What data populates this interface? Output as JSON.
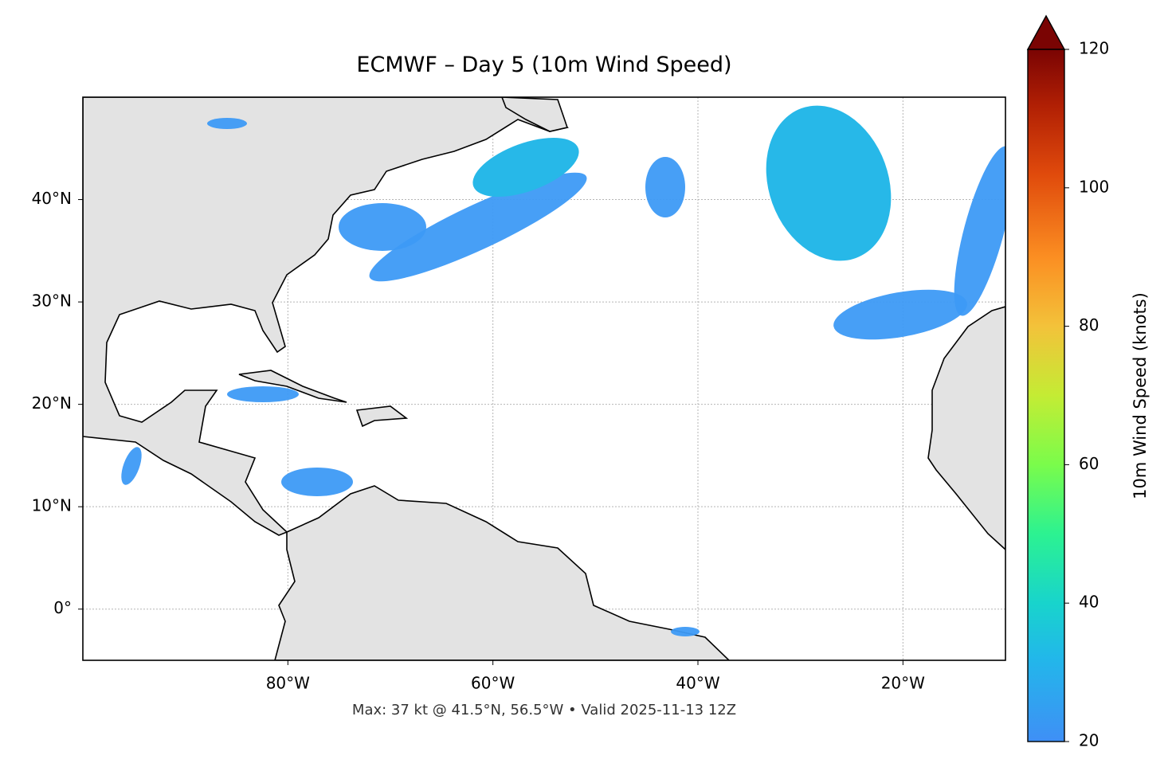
{
  "chart_data": {
    "type": "map",
    "title": "ECMWF – Day 5 (10m Wind Speed)",
    "annotation": "Max: 37 kt @ 41.5°N, 56.5°W • Valid 2025-11-13 12Z",
    "xlim": [
      -100,
      -10
    ],
    "ylim": [
      -5,
      50
    ],
    "xticks": [
      {
        "value": -80,
        "label": "80°W"
      },
      {
        "value": -60,
        "label": "60°W"
      },
      {
        "value": -40,
        "label": "40°W"
      },
      {
        "value": -20,
        "label": "20°W"
      }
    ],
    "yticks": [
      {
        "value": 0,
        "label": "0°"
      },
      {
        "value": 10,
        "label": "10°N"
      },
      {
        "value": 20,
        "label": "20°N"
      },
      {
        "value": 30,
        "label": "30°N"
      },
      {
        "value": 40,
        "label": "40°N"
      }
    ],
    "grid": true,
    "colorbar": {
      "label": "10m Wind Speed (knots)",
      "lim": [
        20,
        120
      ],
      "ticks": [
        20,
        40,
        60,
        80,
        100,
        120
      ]
    }
  }
}
